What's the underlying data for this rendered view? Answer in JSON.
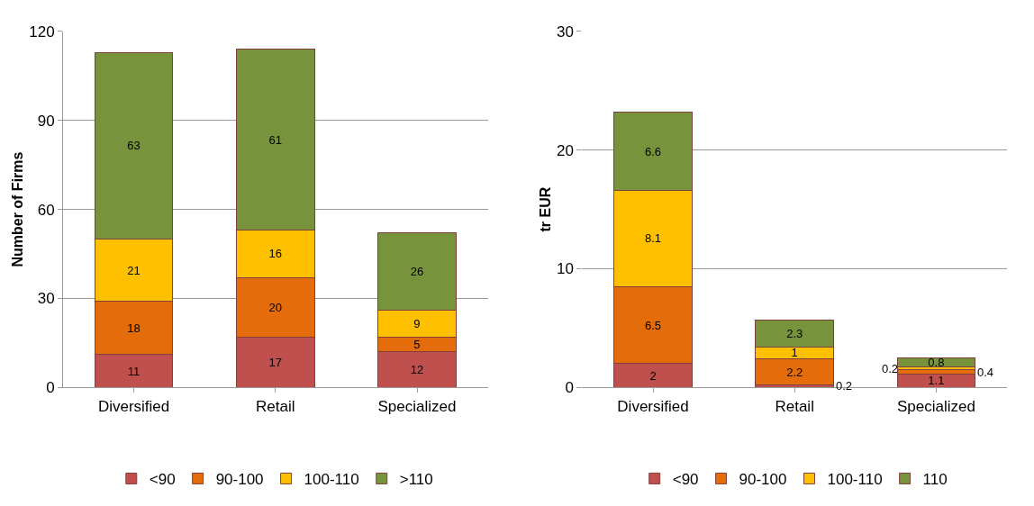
{
  "chart_data": [
    {
      "type": "bar",
      "stacked": true,
      "ylabel": "Number of Firms",
      "categories": [
        "Diversified",
        "Retail",
        "Specialized"
      ],
      "ylim": [
        0,
        120
      ],
      "yticks": [
        0,
        30,
        60,
        90,
        120
      ],
      "grid": "y",
      "legend": "bottom",
      "data_labels": true,
      "series": [
        {
          "name": "<90",
          "color": "#c0504d",
          "values": [
            11,
            17,
            12
          ]
        },
        {
          "name": "90-100",
          "color": "#e46c0a",
          "values": [
            18,
            20,
            5
          ]
        },
        {
          "name": "100-110",
          "color": "#ffc000",
          "values": [
            21,
            16,
            9
          ]
        },
        {
          "name": ">110",
          "color": "#77933c",
          "values": [
            63,
            61,
            26
          ]
        }
      ]
    },
    {
      "type": "bar",
      "stacked": true,
      "ylabel": "tr EUR",
      "categories": [
        "Diversified",
        "Retail",
        "Specialized"
      ],
      "ylim": [
        0,
        30
      ],
      "yticks": [
        0,
        10,
        20,
        30
      ],
      "grid": "y",
      "legend": "bottom",
      "data_labels": true,
      "series": [
        {
          "name": "<90",
          "color": "#c0504d",
          "values": [
            2,
            0.2,
            1.1
          ]
        },
        {
          "name": "90-100",
          "color": "#e46c0a",
          "values": [
            6.5,
            2.2,
            0.4
          ]
        },
        {
          "name": "100-110",
          "color": "#ffc000",
          "values": [
            8.1,
            1,
            0.2
          ]
        },
        {
          "name": "110",
          "color": "#77933c",
          "values": [
            6.6,
            2.3,
            0.8
          ]
        }
      ]
    }
  ]
}
